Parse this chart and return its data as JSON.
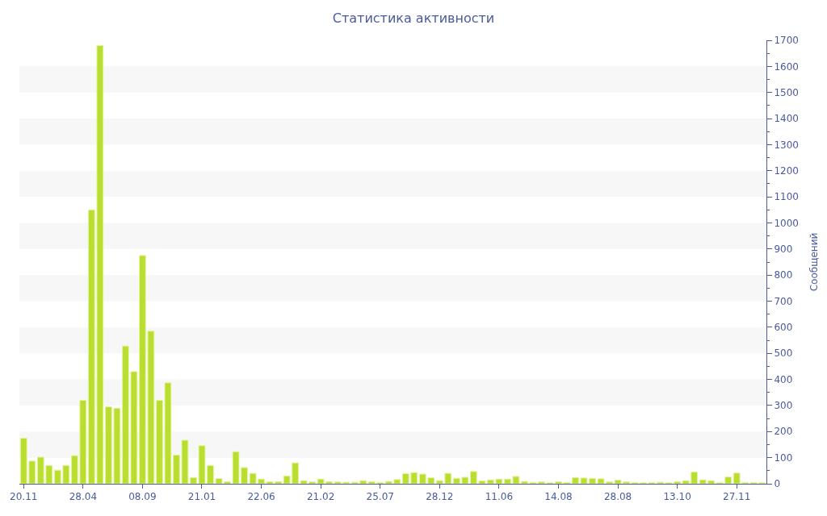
{
  "chart_data": {
    "type": "bar",
    "title": "Статистика активности",
    "ylabel": "Сообщений",
    "categories": [
      "20.11",
      null,
      null,
      null,
      null,
      null,
      null,
      "28.04",
      null,
      null,
      null,
      null,
      null,
      null,
      "08.09",
      null,
      null,
      null,
      null,
      null,
      null,
      "21.01",
      null,
      null,
      null,
      null,
      null,
      null,
      "22.06",
      null,
      null,
      null,
      null,
      null,
      null,
      "21.02",
      null,
      null,
      null,
      null,
      null,
      null,
      "25.07",
      null,
      null,
      null,
      null,
      null,
      null,
      "28.12",
      null,
      null,
      null,
      null,
      null,
      null,
      "11.06",
      null,
      null,
      null,
      null,
      null,
      null,
      "14.08",
      null,
      null,
      null,
      null,
      null,
      null,
      "28.08",
      null,
      null,
      null,
      null,
      null,
      null,
      "13.10",
      null,
      null,
      null,
      null,
      null,
      null,
      "27.11",
      null,
      null,
      null
    ],
    "values": [
      175,
      87,
      102,
      70,
      52,
      70,
      108,
      320,
      1050,
      1680,
      295,
      290,
      528,
      430,
      875,
      585,
      320,
      387,
      110,
      167,
      24,
      146,
      70,
      20,
      8,
      123,
      62,
      40,
      18,
      8,
      8,
      30,
      80,
      12,
      7,
      18,
      8,
      7,
      6,
      6,
      12,
      8,
      5,
      9,
      16,
      39,
      43,
      37,
      23,
      12,
      40,
      21,
      25,
      47,
      11,
      15,
      18,
      18,
      28,
      9,
      5,
      7,
      4,
      8,
      5,
      24,
      22,
      20,
      19,
      7,
      14,
      7,
      5,
      4,
      5,
      6,
      4,
      8,
      12,
      45,
      15,
      12,
      4,
      26,
      41,
      5,
      5,
      4
    ],
    "color": "#bade30",
    "ylim": [
      0,
      1700
    ],
    "yticks": [
      0,
      100,
      200,
      300,
      400,
      500,
      600,
      700,
      800,
      900,
      1000,
      1100,
      1200,
      1300,
      1400,
      1500,
      1600,
      1700
    ],
    "bands": [
      {
        "axis": "y",
        "from": 100,
        "to": 200,
        "color": "#f7f7f7"
      },
      {
        "axis": "y",
        "from": 300,
        "to": 400,
        "color": "#f7f7f7"
      },
      {
        "axis": "y",
        "from": 500,
        "to": 600,
        "color": "#f7f7f7"
      },
      {
        "axis": "y",
        "from": 700,
        "to": 800,
        "color": "#f7f7f7"
      },
      {
        "axis": "y",
        "from": 900,
        "to": 1000,
        "color": "#f7f7f7"
      },
      {
        "axis": "y",
        "from": 1100,
        "to": 1200,
        "color": "#f7f7f7"
      },
      {
        "axis": "y",
        "from": 1300,
        "to": 1400,
        "color": "#f7f7f7"
      },
      {
        "axis": "y",
        "from": 1500,
        "to": 1600,
        "color": "#f7f7f7"
      }
    ],
    "grid": false,
    "legend": false
  }
}
